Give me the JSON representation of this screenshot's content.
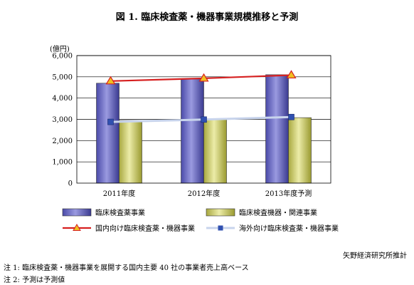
{
  "title": "図 1.  臨床検査薬・機器事業規模推移と予測",
  "unit_label": "(億円)",
  "source": "矢野経済研究所推計",
  "notes": [
    "注 1:  臨床検査薬・機器事業を展開する国内主要 40 社の事業者売上高ベース",
    "注 2:  予測は予測値"
  ],
  "chart_data": {
    "type": "bar",
    "categories": [
      "2011年度",
      "2012年度",
      "2013年度予測"
    ],
    "ylim": [
      0,
      6000
    ],
    "yticks": [
      "0",
      "1,000",
      "2,000",
      "3,000",
      "4,000",
      "5,000",
      "6,000"
    ],
    "yticks_values": [
      0,
      1000,
      2000,
      3000,
      4000,
      5000,
      6000
    ],
    "grid": true,
    "legend_position": "bottom",
    "series": [
      {
        "name": "臨床検査薬事業",
        "type": "bar",
        "values": [
          4700,
          4900,
          5100
        ],
        "color": "#7070c8"
      },
      {
        "name": "臨床検査機器・関連事業",
        "type": "bar",
        "values": [
          2950,
          3000,
          3080
        ],
        "color": "#d8d87a"
      },
      {
        "name": "国内向け臨床検査薬・機器事業",
        "type": "line",
        "marker": "triangle",
        "values": [
          4800,
          4930,
          5080
        ],
        "color": "#d62020",
        "marker_color": "#f0c020"
      },
      {
        "name": "海外向け臨床検査薬・機器事業",
        "type": "line",
        "marker": "square",
        "values": [
          2880,
          2990,
          3110
        ],
        "color": "#c8d4ec",
        "marker_color": "#3050b0"
      }
    ]
  }
}
